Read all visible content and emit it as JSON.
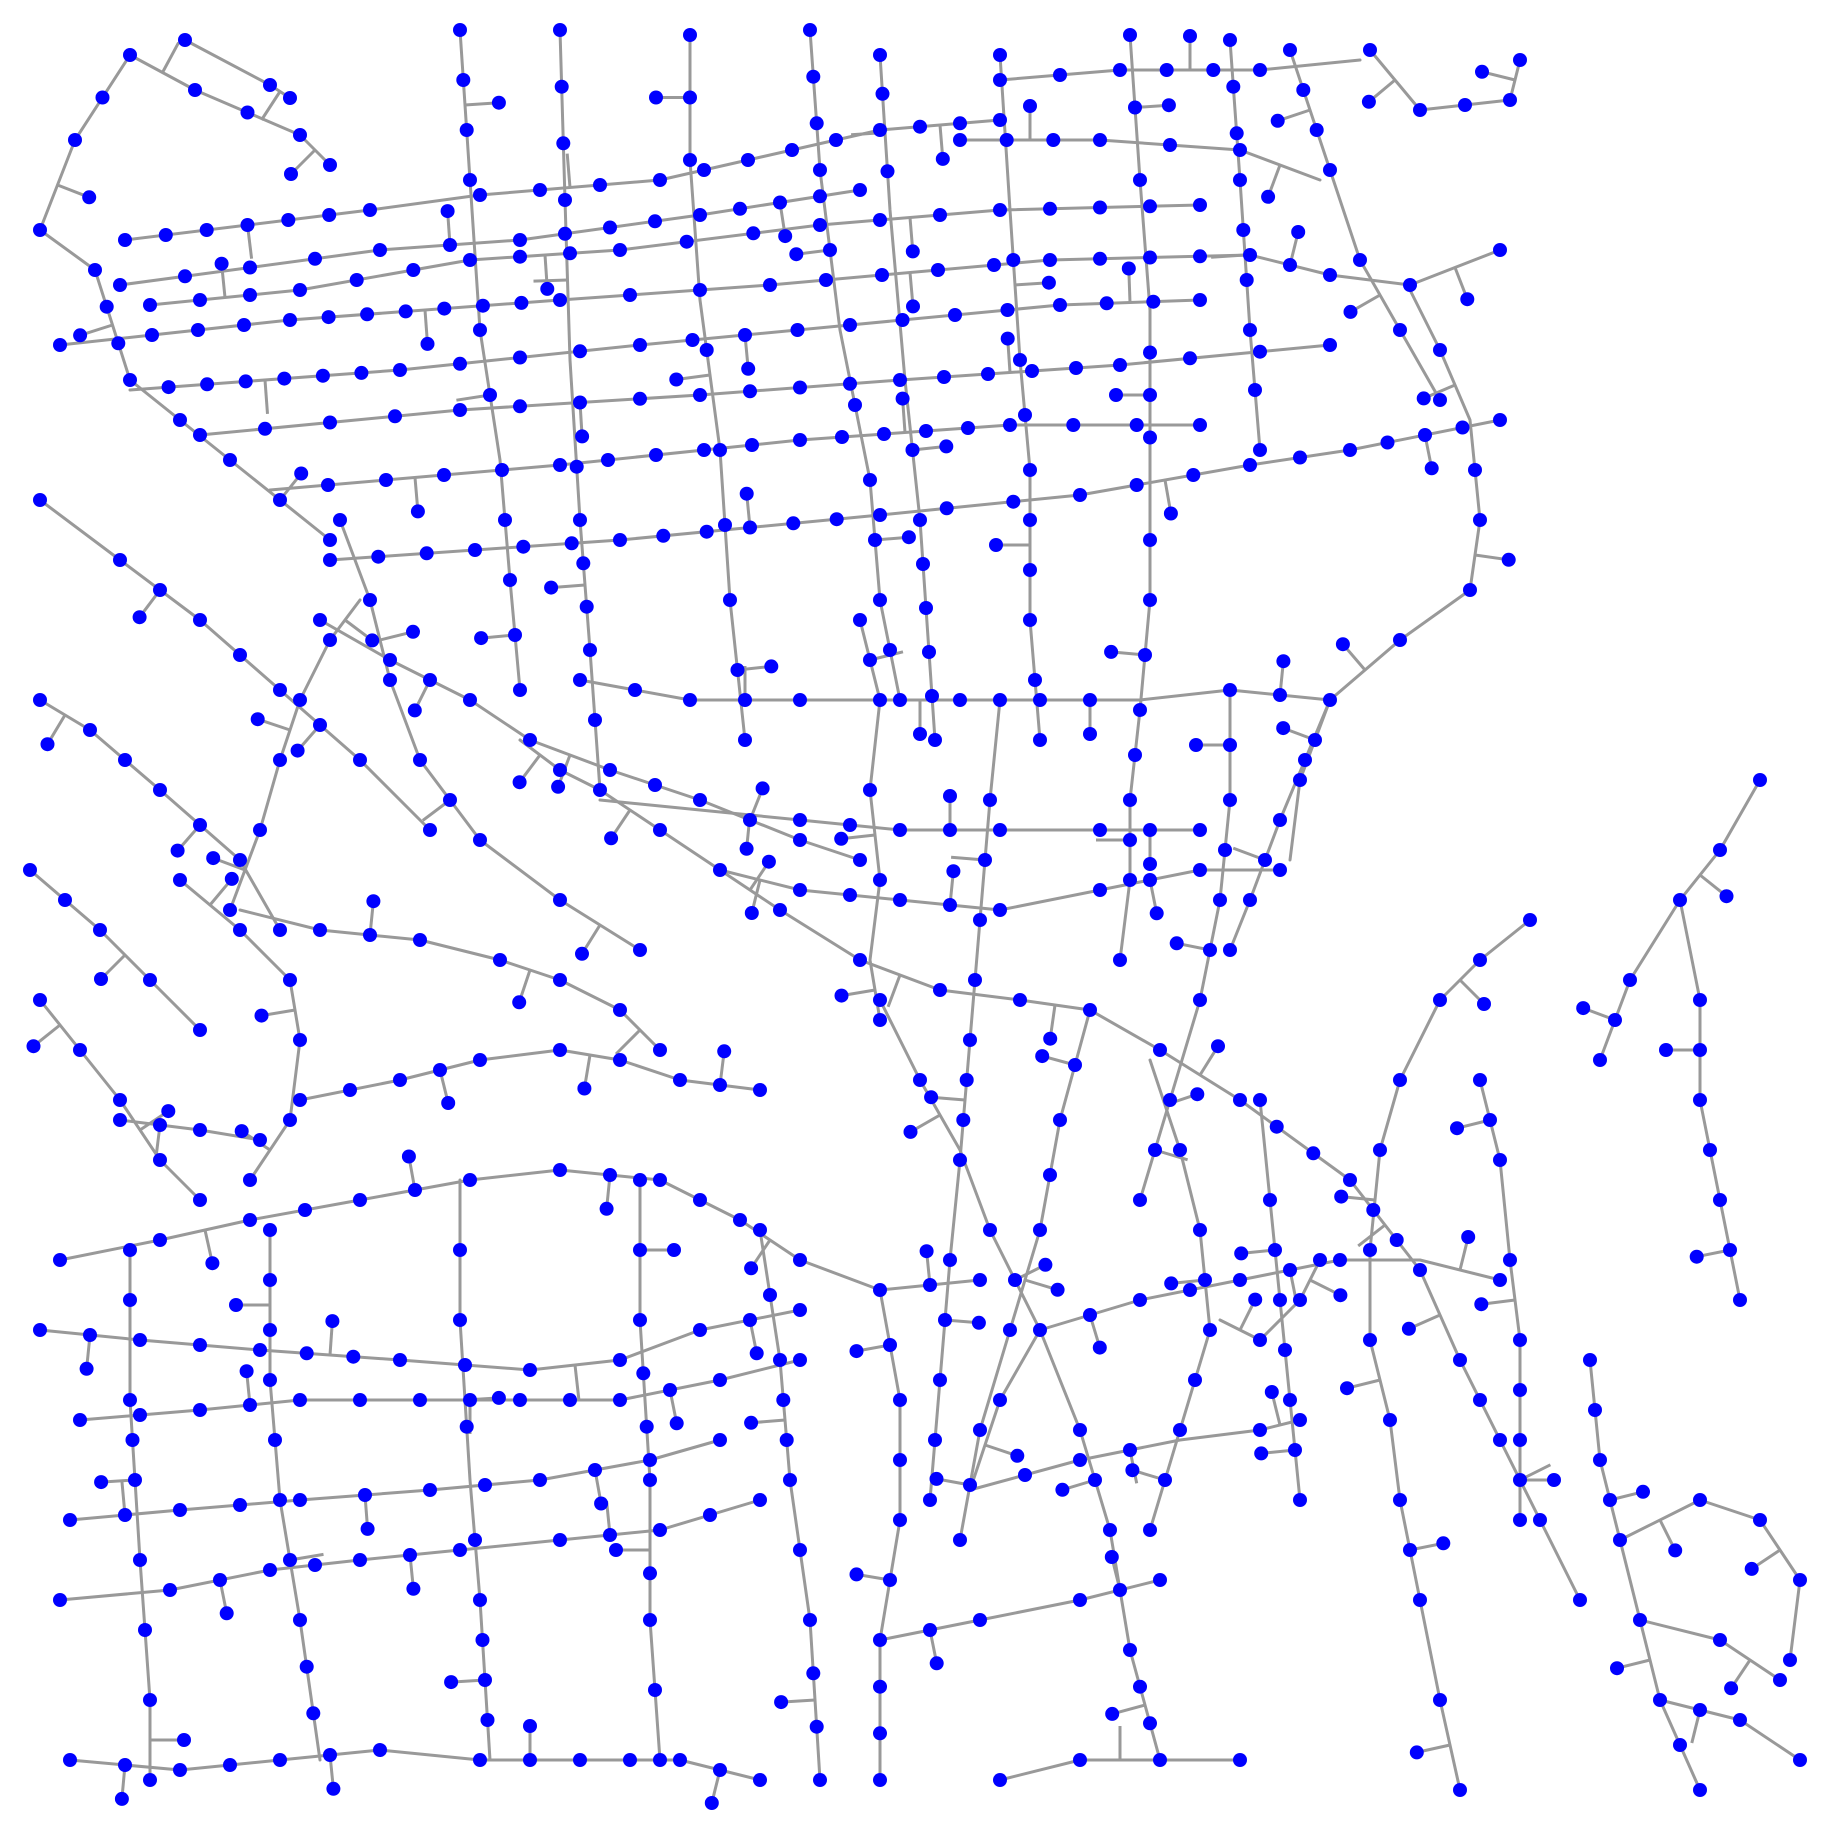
{
  "map": {
    "type": "street-network-graph",
    "background_color": "#ffffff",
    "edge_color": "#999999",
    "node_color": "#0000ff",
    "title": "",
    "labels_present": false
  }
}
